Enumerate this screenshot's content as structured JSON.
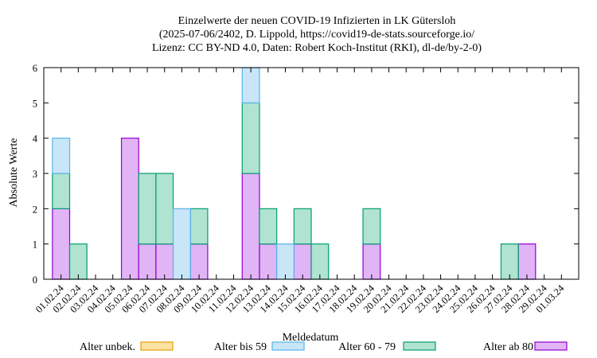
{
  "chart_data": {
    "type": "bar",
    "stacked": true,
    "title": [
      "Einzelwerte der neuen COVID-19 Infizierten in LK Gütersloh",
      "(2025-07-06/2402, D. Lippold, https://covid19-de-stats.sourceforge.io/",
      "Lizenz: CC BY-ND 4.0, Daten: Robert Koch-Institut (RKI), dl-de/by-2-0)"
    ],
    "xlabel": "Meldedatum",
    "ylabel": "Absolute Werte",
    "ylim": [
      0,
      6
    ],
    "yticks": [
      0,
      1,
      2,
      3,
      4,
      5,
      6
    ],
    "grid": false,
    "legend_position": "bottom",
    "categories": [
      "01.02.24",
      "02.02.24",
      "03.02.24",
      "04.02.24",
      "05.02.24",
      "06.02.24",
      "07.02.24",
      "08.02.24",
      "09.02.24",
      "10.02.24",
      "11.02.24",
      "12.02.24",
      "13.02.24",
      "14.02.24",
      "15.02.24",
      "16.02.24",
      "17.02.24",
      "18.02.24",
      "19.02.24",
      "20.02.24",
      "21.02.24",
      "22.02.24",
      "23.02.24",
      "24.02.24",
      "25.02.24",
      "26.02.24",
      "27.02.24",
      "28.02.24",
      "29.02.24",
      "01.03.24"
    ],
    "series": [
      {
        "name": "Alter ab 80",
        "color": "#e0b4f5",
        "stroke": "#9400d3",
        "values": [
          2,
          0,
          0,
          0,
          4,
          1,
          1,
          0,
          1,
          0,
          0,
          3,
          1,
          0,
          1,
          0,
          0,
          0,
          1,
          0,
          0,
          0,
          0,
          0,
          0,
          0,
          0,
          1,
          0,
          0
        ]
      },
      {
        "name": "Alter 60 - 79",
        "color": "#b0e3d0",
        "stroke": "#009e73",
        "values": [
          1,
          1,
          0,
          0,
          0,
          2,
          2,
          0,
          1,
          0,
          0,
          2,
          1,
          0,
          1,
          1,
          0,
          0,
          1,
          0,
          0,
          0,
          0,
          0,
          0,
          0,
          1,
          0,
          0,
          0
        ]
      },
      {
        "name": "Alter bis 59",
        "color": "#c8e6f8",
        "stroke": "#56b4e9",
        "values": [
          1,
          0,
          0,
          0,
          0,
          0,
          0,
          2,
          0,
          0,
          0,
          1,
          0,
          1,
          0,
          0,
          0,
          0,
          0,
          0,
          0,
          0,
          0,
          0,
          0,
          0,
          0,
          0,
          0,
          0
        ]
      },
      {
        "name": "Alter unbek.",
        "color": "#fce3a4",
        "stroke": "#e69f00",
        "values": [
          0,
          0,
          0,
          0,
          0,
          0,
          0,
          0,
          0,
          0,
          0,
          0,
          0,
          0,
          0,
          0,
          0,
          0,
          0,
          0,
          0,
          0,
          0,
          0,
          0,
          0,
          0,
          0,
          0,
          0
        ]
      }
    ],
    "legend_order": [
      "Alter unbek.",
      "Alter bis 59",
      "Alter 60 - 79",
      "Alter ab 80"
    ]
  }
}
